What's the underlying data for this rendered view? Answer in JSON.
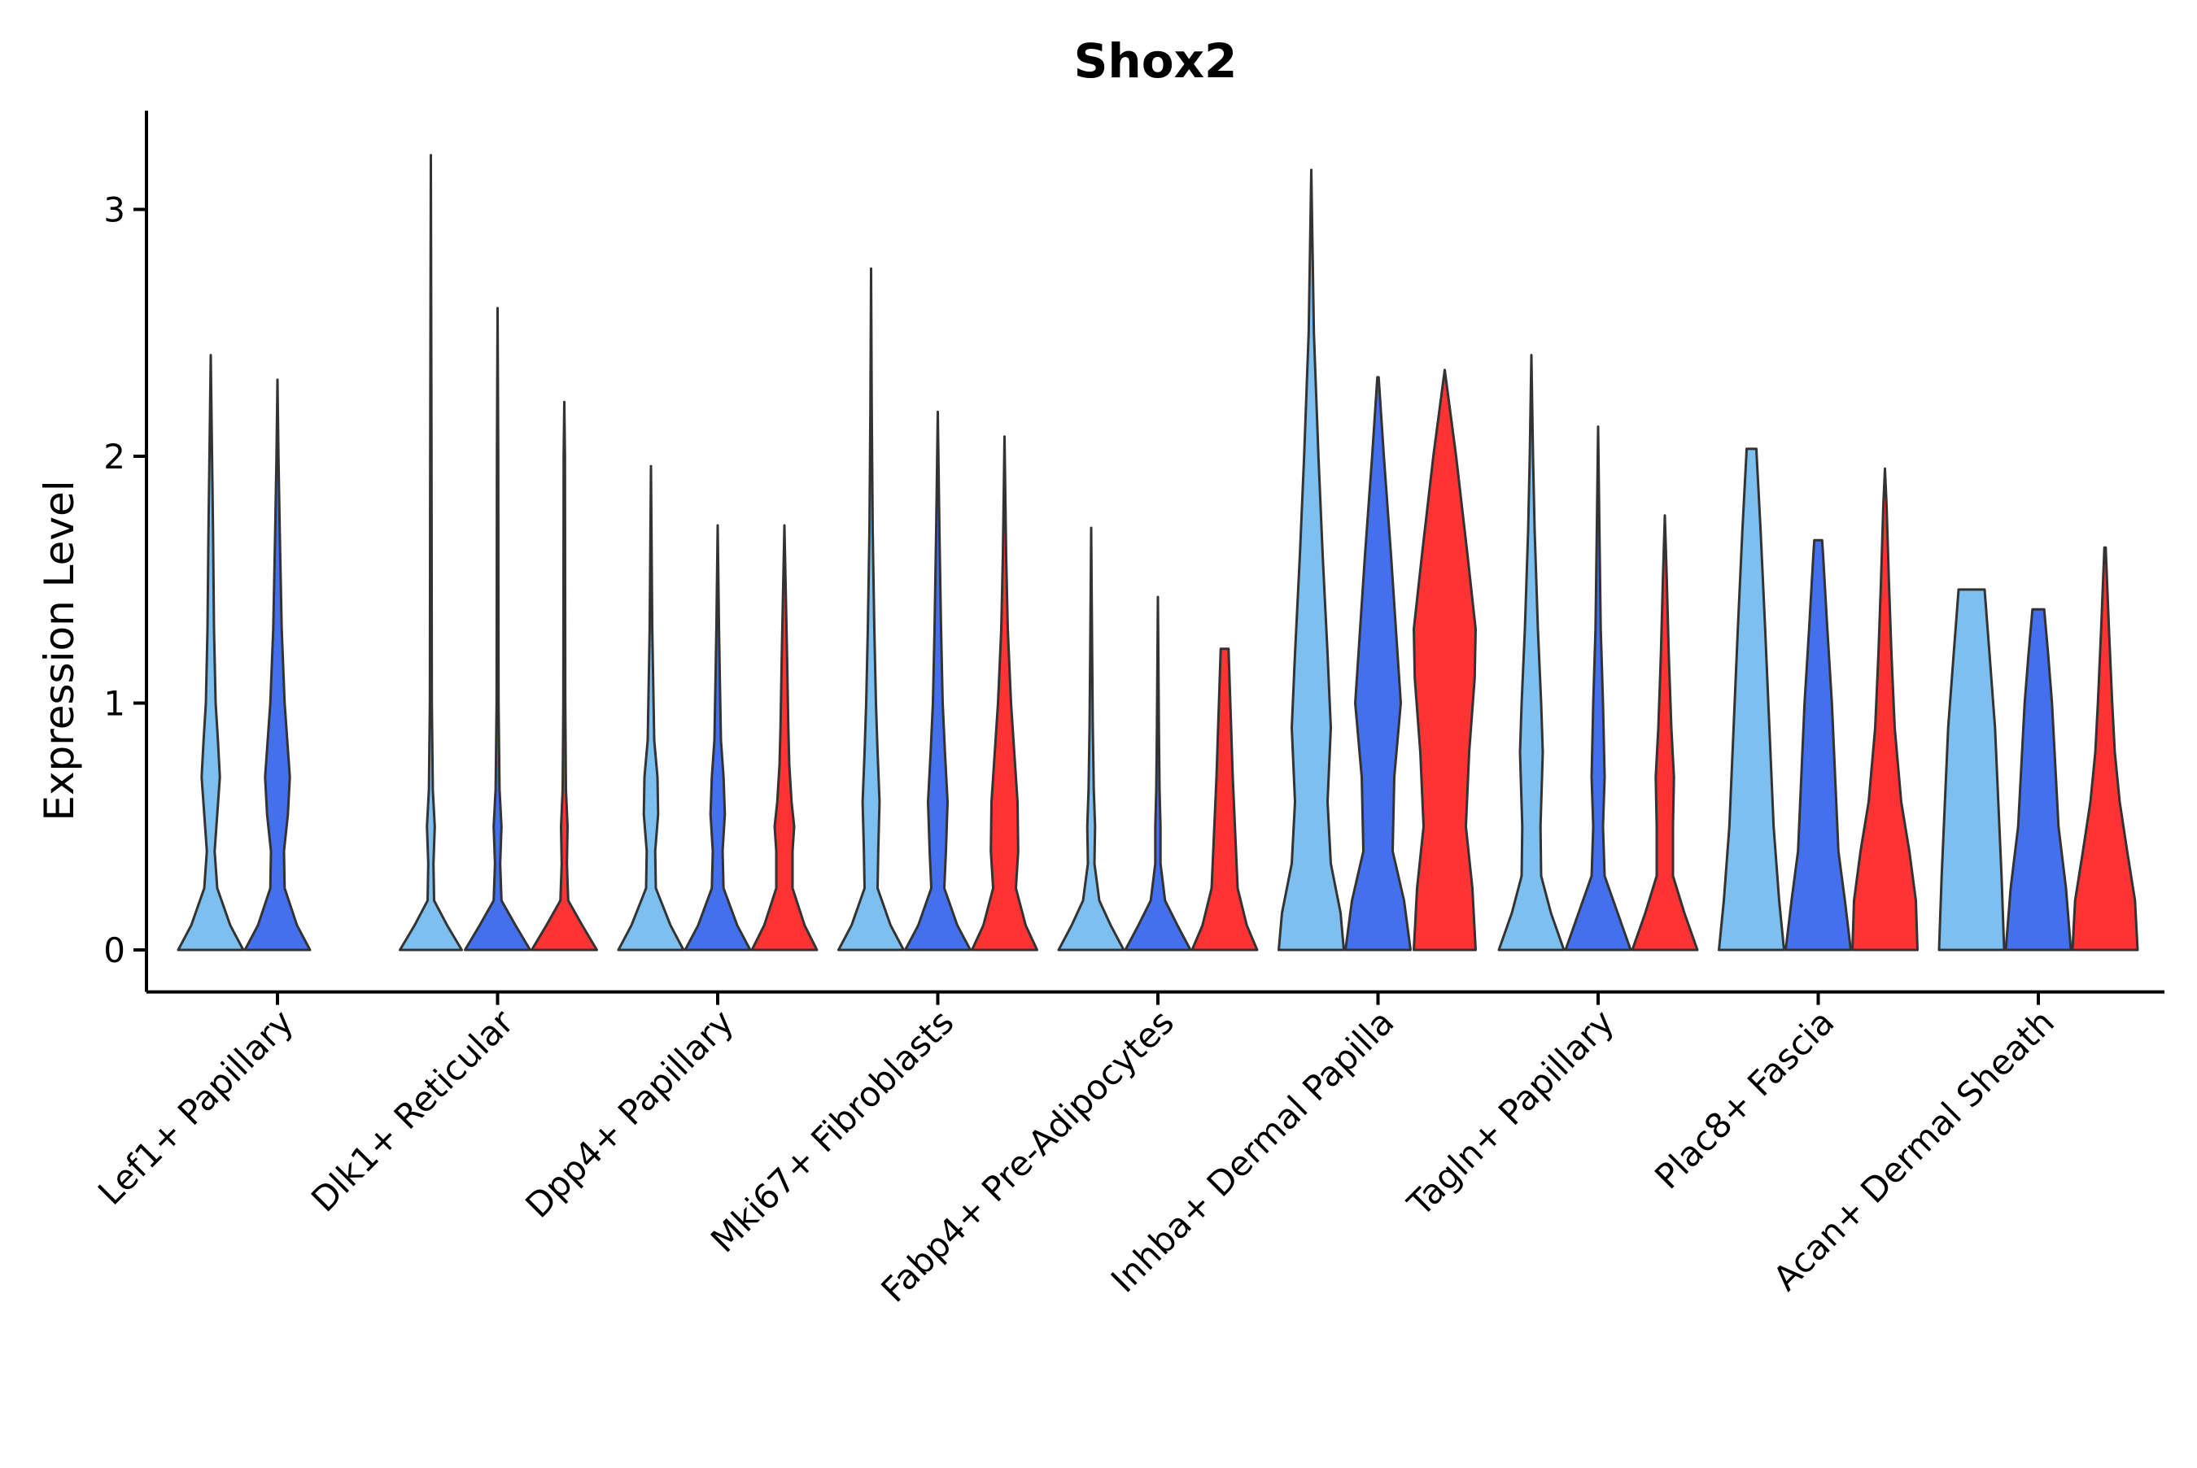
{
  "chart_data": {
    "type": "violin",
    "title": "Shox2",
    "xlabel": "",
    "ylabel": "Expression Level",
    "ylim": [
      -0.17,
      3.4
    ],
    "yticks": [
      0,
      1,
      2,
      3
    ],
    "grid": false,
    "legend": "none",
    "categories": [
      "Lef1+ Papillary",
      "Dlk1+ Reticular",
      "Dpp4+ Papillary",
      "Mki67+ Fibroblasts",
      "Fabp4+ Pre-Adipocytes",
      "Inhba+ Dermal Papilla",
      "Tagln+ Papillary",
      "Plac8+ Fascia",
      "Acan+ Dermal Sheath"
    ],
    "colors": {
      "group1": "#7DBFEE",
      "group2": "#4470EE",
      "group3": "#FF3333",
      "outline": "#333333"
    },
    "violins": [
      {
        "category": 0,
        "group": "group1",
        "max": 2.41,
        "profile": [
          [
            0,
            1.0
          ],
          [
            0.1,
            0.6
          ],
          [
            0.25,
            0.2
          ],
          [
            0.4,
            0.12
          ],
          [
            0.55,
            0.2
          ],
          [
            0.7,
            0.28
          ],
          [
            0.85,
            0.22
          ],
          [
            1.0,
            0.15
          ],
          [
            1.3,
            0.1
          ],
          [
            1.7,
            0.07
          ],
          [
            2.0,
            0.04
          ],
          [
            2.41,
            0.0
          ]
        ]
      },
      {
        "category": 0,
        "group": "group2",
        "max": 2.31,
        "profile": [
          [
            0,
            1.0
          ],
          [
            0.1,
            0.6
          ],
          [
            0.25,
            0.22
          ],
          [
            0.4,
            0.2
          ],
          [
            0.55,
            0.32
          ],
          [
            0.7,
            0.38
          ],
          [
            0.85,
            0.3
          ],
          [
            1.0,
            0.22
          ],
          [
            1.3,
            0.13
          ],
          [
            1.7,
            0.07
          ],
          [
            2.0,
            0.03
          ],
          [
            2.31,
            0.0
          ]
        ]
      },
      {
        "category": 1,
        "group": "group1",
        "max": 3.22,
        "profile": [
          [
            0,
            0.95
          ],
          [
            0.1,
            0.5
          ],
          [
            0.2,
            0.1
          ],
          [
            0.35,
            0.08
          ],
          [
            0.5,
            0.12
          ],
          [
            0.65,
            0.06
          ],
          [
            1.0,
            0.03
          ],
          [
            2.0,
            0.02
          ],
          [
            3.22,
            0.0
          ]
        ]
      },
      {
        "category": 1,
        "group": "group2",
        "max": 2.6,
        "profile": [
          [
            0,
            1.0
          ],
          [
            0.1,
            0.55
          ],
          [
            0.2,
            0.12
          ],
          [
            0.35,
            0.08
          ],
          [
            0.5,
            0.12
          ],
          [
            0.65,
            0.06
          ],
          [
            1.0,
            0.03
          ],
          [
            2.0,
            0.02
          ],
          [
            2.6,
            0.0
          ]
        ]
      },
      {
        "category": 1,
        "group": "group3",
        "max": 2.22,
        "profile": [
          [
            0,
            1.0
          ],
          [
            0.1,
            0.55
          ],
          [
            0.2,
            0.12
          ],
          [
            0.35,
            0.08
          ],
          [
            0.5,
            0.1
          ],
          [
            0.65,
            0.05
          ],
          [
            1.0,
            0.03
          ],
          [
            2.0,
            0.02
          ],
          [
            2.22,
            0.0
          ]
        ]
      },
      {
        "category": 2,
        "group": "group1",
        "max": 1.96,
        "profile": [
          [
            0,
            1.0
          ],
          [
            0.1,
            0.6
          ],
          [
            0.25,
            0.15
          ],
          [
            0.4,
            0.13
          ],
          [
            0.55,
            0.22
          ],
          [
            0.7,
            0.2
          ],
          [
            0.85,
            0.1
          ],
          [
            1.0,
            0.08
          ],
          [
            1.3,
            0.04
          ],
          [
            1.96,
            0.0
          ]
        ]
      },
      {
        "category": 2,
        "group": "group2",
        "max": 1.72,
        "profile": [
          [
            0,
            1.0
          ],
          [
            0.1,
            0.6
          ],
          [
            0.25,
            0.18
          ],
          [
            0.4,
            0.15
          ],
          [
            0.55,
            0.22
          ],
          [
            0.7,
            0.18
          ],
          [
            0.85,
            0.1
          ],
          [
            1.0,
            0.08
          ],
          [
            1.3,
            0.04
          ],
          [
            1.72,
            0.0
          ]
        ]
      },
      {
        "category": 2,
        "group": "group3",
        "max": 1.72,
        "profile": [
          [
            0,
            1.0
          ],
          [
            0.1,
            0.62
          ],
          [
            0.25,
            0.25
          ],
          [
            0.4,
            0.25
          ],
          [
            0.5,
            0.3
          ],
          [
            0.6,
            0.22
          ],
          [
            0.75,
            0.15
          ],
          [
            0.9,
            0.12
          ],
          [
            1.2,
            0.08
          ],
          [
            1.72,
            0.0
          ]
        ]
      },
      {
        "category": 3,
        "group": "group1",
        "max": 2.76,
        "profile": [
          [
            0,
            1.0
          ],
          [
            0.1,
            0.6
          ],
          [
            0.25,
            0.2
          ],
          [
            0.4,
            0.22
          ],
          [
            0.6,
            0.26
          ],
          [
            0.8,
            0.2
          ],
          [
            1.0,
            0.15
          ],
          [
            1.3,
            0.1
          ],
          [
            1.7,
            0.05
          ],
          [
            2.2,
            0.02
          ],
          [
            2.76,
            0.0
          ]
        ]
      },
      {
        "category": 3,
        "group": "group2",
        "max": 2.18,
        "profile": [
          [
            0,
            1.0
          ],
          [
            0.1,
            0.6
          ],
          [
            0.25,
            0.2
          ],
          [
            0.4,
            0.25
          ],
          [
            0.6,
            0.3
          ],
          [
            0.8,
            0.22
          ],
          [
            1.0,
            0.15
          ],
          [
            1.3,
            0.1
          ],
          [
            1.7,
            0.05
          ],
          [
            2.18,
            0.0
          ]
        ]
      },
      {
        "category": 3,
        "group": "group3",
        "max": 2.08,
        "profile": [
          [
            0,
            1.0
          ],
          [
            0.1,
            0.65
          ],
          [
            0.25,
            0.35
          ],
          [
            0.4,
            0.42
          ],
          [
            0.6,
            0.4
          ],
          [
            0.8,
            0.3
          ],
          [
            1.0,
            0.2
          ],
          [
            1.3,
            0.1
          ],
          [
            1.6,
            0.05
          ],
          [
            2.08,
            0.0
          ]
        ]
      },
      {
        "category": 4,
        "group": "group1",
        "max": 1.71,
        "profile": [
          [
            0,
            1.0
          ],
          [
            0.1,
            0.6
          ],
          [
            0.2,
            0.25
          ],
          [
            0.35,
            0.1
          ],
          [
            0.5,
            0.12
          ],
          [
            0.65,
            0.08
          ],
          [
            0.9,
            0.05
          ],
          [
            1.2,
            0.03
          ],
          [
            1.71,
            0.0
          ]
        ]
      },
      {
        "category": 4,
        "group": "group2",
        "max": 1.43,
        "profile": [
          [
            0,
            1.0
          ],
          [
            0.1,
            0.6
          ],
          [
            0.2,
            0.22
          ],
          [
            0.35,
            0.08
          ],
          [
            0.5,
            0.08
          ],
          [
            0.65,
            0.05
          ],
          [
            0.9,
            0.03
          ],
          [
            1.43,
            0.0
          ]
        ]
      },
      {
        "category": 4,
        "group": "group3",
        "max": 1.22,
        "profile": [
          [
            0,
            1.0
          ],
          [
            0.1,
            0.68
          ],
          [
            0.25,
            0.4
          ],
          [
            0.4,
            0.35
          ],
          [
            0.55,
            0.3
          ],
          [
            0.7,
            0.25
          ],
          [
            0.9,
            0.2
          ],
          [
            1.1,
            0.15
          ],
          [
            1.22,
            0.12
          ]
        ]
      },
      {
        "category": 5,
        "group": "group1",
        "max": 3.16,
        "profile": [
          [
            0,
            1.0
          ],
          [
            0.15,
            0.9
          ],
          [
            0.35,
            0.6
          ],
          [
            0.6,
            0.5
          ],
          [
            0.9,
            0.6
          ],
          [
            1.2,
            0.5
          ],
          [
            1.6,
            0.35
          ],
          [
            2.0,
            0.22
          ],
          [
            2.5,
            0.08
          ],
          [
            3.16,
            0.0
          ]
        ]
      },
      {
        "category": 5,
        "group": "group2",
        "max": 2.32,
        "profile": [
          [
            0,
            1.0
          ],
          [
            0.2,
            0.8
          ],
          [
            0.4,
            0.45
          ],
          [
            0.7,
            0.5
          ],
          [
            1.0,
            0.7
          ],
          [
            1.3,
            0.55
          ],
          [
            1.6,
            0.4
          ],
          [
            2.0,
            0.18
          ],
          [
            2.32,
            0.02
          ]
        ]
      },
      {
        "category": 5,
        "group": "group3",
        "max": 2.35,
        "profile": [
          [
            0,
            0.95
          ],
          [
            0.25,
            0.85
          ],
          [
            0.5,
            0.65
          ],
          [
            0.8,
            0.75
          ],
          [
            1.1,
            0.92
          ],
          [
            1.3,
            0.95
          ],
          [
            1.6,
            0.7
          ],
          [
            2.0,
            0.35
          ],
          [
            2.3,
            0.05
          ],
          [
            2.35,
            0.0
          ]
        ]
      },
      {
        "category": 6,
        "group": "group1",
        "max": 2.41,
        "profile": [
          [
            0,
            1.0
          ],
          [
            0.15,
            0.6
          ],
          [
            0.3,
            0.3
          ],
          [
            0.5,
            0.28
          ],
          [
            0.8,
            0.35
          ],
          [
            1.0,
            0.3
          ],
          [
            1.3,
            0.2
          ],
          [
            1.7,
            0.1
          ],
          [
            2.0,
            0.05
          ],
          [
            2.41,
            0.0
          ]
        ]
      },
      {
        "category": 6,
        "group": "group2",
        "max": 2.12,
        "profile": [
          [
            0,
            1.0
          ],
          [
            0.15,
            0.6
          ],
          [
            0.3,
            0.2
          ],
          [
            0.5,
            0.15
          ],
          [
            0.7,
            0.2
          ],
          [
            1.0,
            0.15
          ],
          [
            1.3,
            0.08
          ],
          [
            1.7,
            0.04
          ],
          [
            2.12,
            0.0
          ]
        ]
      },
      {
        "category": 6,
        "group": "group3",
        "max": 1.76,
        "profile": [
          [
            0,
            1.0
          ],
          [
            0.15,
            0.6
          ],
          [
            0.3,
            0.25
          ],
          [
            0.5,
            0.25
          ],
          [
            0.7,
            0.28
          ],
          [
            0.9,
            0.2
          ],
          [
            1.2,
            0.12
          ],
          [
            1.5,
            0.06
          ],
          [
            1.76,
            0.0
          ]
        ]
      },
      {
        "category": 7,
        "group": "group1",
        "max": 2.03,
        "profile": [
          [
            0,
            1.0
          ],
          [
            0.2,
            0.85
          ],
          [
            0.5,
            0.68
          ],
          [
            0.9,
            0.55
          ],
          [
            1.3,
            0.42
          ],
          [
            1.7,
            0.28
          ],
          [
            2.0,
            0.16
          ],
          [
            2.03,
            0.15
          ]
        ]
      },
      {
        "category": 7,
        "group": "group2",
        "max": 1.66,
        "profile": [
          [
            0,
            1.0
          ],
          [
            0.2,
            0.82
          ],
          [
            0.4,
            0.62
          ],
          [
            0.7,
            0.52
          ],
          [
            1.0,
            0.42
          ],
          [
            1.3,
            0.28
          ],
          [
            1.6,
            0.15
          ],
          [
            1.66,
            0.12
          ]
        ]
      },
      {
        "category": 7,
        "group": "group3",
        "max": 1.95,
        "profile": [
          [
            0,
            1.0
          ],
          [
            0.2,
            0.95
          ],
          [
            0.4,
            0.75
          ],
          [
            0.6,
            0.5
          ],
          [
            0.9,
            0.3
          ],
          [
            1.2,
            0.2
          ],
          [
            1.5,
            0.12
          ],
          [
            1.8,
            0.05
          ],
          [
            1.95,
            0.0
          ]
        ]
      },
      {
        "category": 8,
        "group": "group1",
        "max": 1.46,
        "profile": [
          [
            0,
            1.0
          ],
          [
            0.3,
            0.92
          ],
          [
            0.6,
            0.82
          ],
          [
            0.9,
            0.72
          ],
          [
            1.2,
            0.55
          ],
          [
            1.46,
            0.4
          ]
        ]
      },
      {
        "category": 8,
        "group": "group2",
        "max": 1.38,
        "profile": [
          [
            0,
            1.0
          ],
          [
            0.25,
            0.85
          ],
          [
            0.5,
            0.62
          ],
          [
            0.75,
            0.52
          ],
          [
            1.0,
            0.42
          ],
          [
            1.2,
            0.3
          ],
          [
            1.38,
            0.18
          ]
        ]
      },
      {
        "category": 8,
        "group": "group3",
        "max": 1.63,
        "profile": [
          [
            0,
            1.0
          ],
          [
            0.2,
            0.92
          ],
          [
            0.4,
            0.68
          ],
          [
            0.6,
            0.45
          ],
          [
            0.8,
            0.3
          ],
          [
            1.0,
            0.22
          ],
          [
            1.3,
            0.12
          ],
          [
            1.63,
            0.02
          ]
        ]
      }
    ]
  }
}
